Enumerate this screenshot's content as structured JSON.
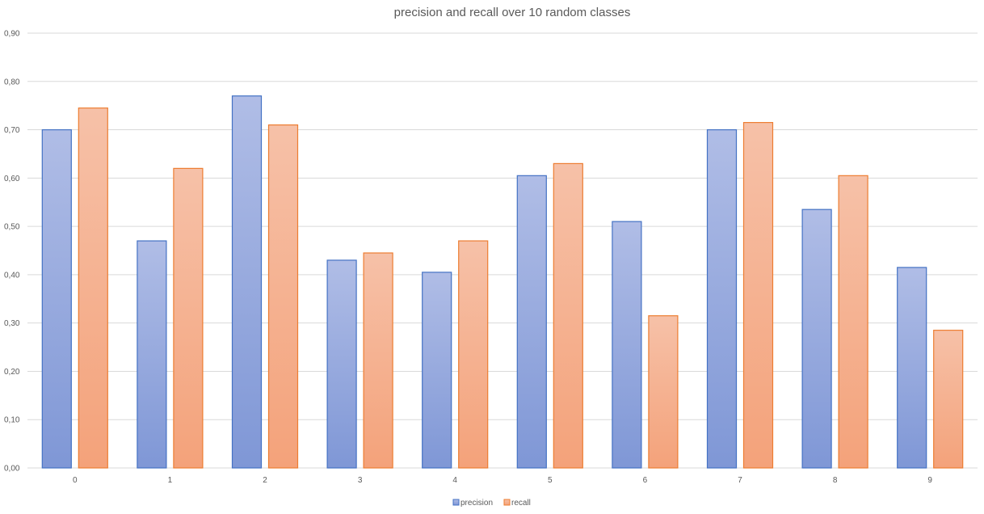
{
  "chart_data": {
    "type": "bar",
    "title": "precision and recall over 10 random classes",
    "xlabel": "",
    "ylabel": "",
    "categories": [
      "0",
      "1",
      "2",
      "3",
      "4",
      "5",
      "6",
      "7",
      "8",
      "9"
    ],
    "series": [
      {
        "name": "precision",
        "values": [
          0.7,
          0.47,
          0.77,
          0.43,
          0.405,
          0.605,
          0.51,
          0.7,
          0.535,
          0.415
        ]
      },
      {
        "name": "recall",
        "values": [
          0.745,
          0.62,
          0.71,
          0.445,
          0.47,
          0.63,
          0.315,
          0.715,
          0.605,
          0.285
        ]
      }
    ],
    "ylim": [
      0,
      0.9
    ],
    "yticks": [
      0.0,
      0.1,
      0.2,
      0.3,
      0.4,
      0.5,
      0.6,
      0.7,
      0.8,
      0.9
    ],
    "ytick_labels": [
      "0,00",
      "0,10",
      "0,20",
      "0,30",
      "0,40",
      "0,50",
      "0,60",
      "0,70",
      "0,80",
      "0,90"
    ],
    "grid": true,
    "legend_position": "bottom-center",
    "colors": {
      "precision_fill_top": "#b0bde6",
      "precision_fill_bottom": "#7f97d6",
      "precision_stroke": "#4472c4",
      "recall_fill_top": "#f6c1a8",
      "recall_fill_bottom": "#f4a27a",
      "recall_stroke": "#ed7d31",
      "grid": "#d9d9d9",
      "text": "#595959"
    }
  }
}
